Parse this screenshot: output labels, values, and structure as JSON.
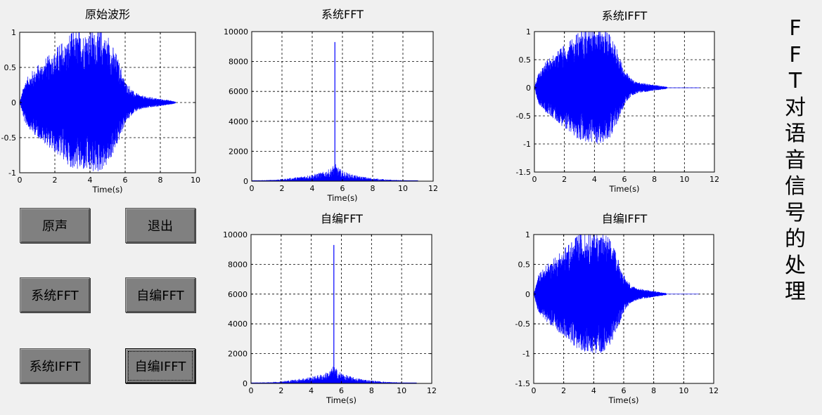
{
  "side_title": [
    "F",
    "F",
    "T",
    "对",
    "语",
    "音",
    "信",
    "号",
    "的",
    "处",
    "理"
  ],
  "buttons": {
    "original": "原声",
    "exit": "退出",
    "sys_fft": "系统FFT",
    "self_fft": "自编FFT",
    "sys_ifft": "系统IFFT",
    "self_ifft": "自编IFFT"
  },
  "colors": {
    "signal": "#0000ff",
    "plot_bg": "#ffffff",
    "figure_bg": "#f0f0f0",
    "button": "#808080"
  },
  "chart_data": [
    {
      "id": "original",
      "type": "line",
      "title": "原始波形",
      "xlabel": "Time(s)",
      "xlim": [
        0,
        10
      ],
      "ylim": [
        -1,
        1
      ],
      "xticks": [
        0,
        2,
        4,
        6,
        8,
        10
      ],
      "xtick_labels": [
        "0",
        "2",
        "4",
        "6",
        "8",
        "10"
      ],
      "yticks": [
        -1,
        -0.5,
        0,
        0.5,
        1
      ],
      "ytick_labels": [
        "-1",
        "-0.5",
        "0",
        "0.5",
        "1"
      ],
      "grid": true,
      "envelope": [
        [
          0,
          0
        ],
        [
          0.3,
          0.3
        ],
        [
          0.8,
          0.45
        ],
        [
          1.5,
          0.6
        ],
        [
          2,
          0.72
        ],
        [
          2.5,
          0.82
        ],
        [
          3,
          0.95
        ],
        [
          3.5,
          0.97
        ],
        [
          4,
          1
        ],
        [
          4.5,
          1
        ],
        [
          5,
          0.9
        ],
        [
          5.5,
          0.65
        ],
        [
          6,
          0.3
        ],
        [
          6.5,
          0.14
        ],
        [
          7,
          0.09
        ],
        [
          8,
          0.05
        ],
        [
          8.8,
          0.02
        ],
        [
          8.9,
          0
        ]
      ]
    },
    {
      "id": "sys_fft",
      "type": "line",
      "title": "系统FFT",
      "xlabel": "Time(s)",
      "xlim": [
        0,
        12
      ],
      "ylim": [
        0,
        10000
      ],
      "xticks": [
        0,
        2,
        4,
        6,
        8,
        10,
        12
      ],
      "xtick_labels": [
        "0",
        "2",
        "4",
        "6",
        "8",
        "10",
        "12"
      ],
      "yticks": [
        0,
        2000,
        4000,
        6000,
        8000,
        10000
      ],
      "ytick_labels": [
        "0",
        "2000",
        "4000",
        "6000",
        "8000",
        "10000"
      ],
      "grid": true,
      "baseline": [
        [
          0,
          40
        ],
        [
          1,
          60
        ],
        [
          2,
          120
        ],
        [
          3,
          230
        ],
        [
          4,
          380
        ],
        [
          4.7,
          520
        ],
        [
          5.2,
          700
        ],
        [
          5.5,
          1000
        ],
        [
          5.8,
          700
        ],
        [
          6.3,
          480
        ],
        [
          7,
          300
        ],
        [
          8,
          170
        ],
        [
          9,
          90
        ],
        [
          10,
          50
        ],
        [
          11,
          30
        ]
      ],
      "peak_x": 5.5,
      "peak_y": 9300
    },
    {
      "id": "sys_ifft",
      "type": "line",
      "title": "系统IFFT",
      "xlabel": "Time(s)",
      "xlim": [
        0,
        12
      ],
      "ylim": [
        -1.5,
        1
      ],
      "xticks": [
        0,
        2,
        4,
        6,
        8,
        10,
        12
      ],
      "xtick_labels": [
        "0",
        "2",
        "4",
        "6",
        "8",
        "10",
        "12"
      ],
      "yticks": [
        -1.5,
        -1,
        -0.5,
        0,
        0.5,
        1
      ],
      "ytick_labels": [
        "-1.5",
        "-1",
        "-0.5",
        "0",
        "0.5",
        "1"
      ],
      "grid": true,
      "envelope": [
        [
          0,
          0
        ],
        [
          0.3,
          0.3
        ],
        [
          0.8,
          0.45
        ],
        [
          1.5,
          0.6
        ],
        [
          2,
          0.72
        ],
        [
          2.5,
          0.82
        ],
        [
          3,
          0.95
        ],
        [
          3.5,
          0.97
        ],
        [
          4,
          1
        ],
        [
          4.5,
          1
        ],
        [
          5,
          0.9
        ],
        [
          5.5,
          0.65
        ],
        [
          6,
          0.3
        ],
        [
          6.5,
          0.14
        ],
        [
          7,
          0.09
        ],
        [
          8,
          0.05
        ],
        [
          8.8,
          0.02
        ],
        [
          8.9,
          0
        ]
      ],
      "flat_until": 11
    },
    {
      "id": "self_fft",
      "type": "line",
      "title": "自编FFT",
      "xlabel": "Time(s)",
      "xlim": [
        0,
        12
      ],
      "ylim": [
        0,
        10000
      ],
      "xticks": [
        0,
        2,
        4,
        6,
        8,
        10,
        12
      ],
      "xtick_labels": [
        "0",
        "2",
        "4",
        "6",
        "8",
        "10",
        "12"
      ],
      "yticks": [
        0,
        2000,
        4000,
        6000,
        8000,
        10000
      ],
      "ytick_labels": [
        "0",
        "2000",
        "4000",
        "6000",
        "8000",
        "10000"
      ],
      "grid": true,
      "baseline": [
        [
          0,
          40
        ],
        [
          1,
          60
        ],
        [
          2,
          120
        ],
        [
          3,
          230
        ],
        [
          4,
          380
        ],
        [
          4.7,
          520
        ],
        [
          5.2,
          700
        ],
        [
          5.5,
          1000
        ],
        [
          5.8,
          700
        ],
        [
          6.3,
          480
        ],
        [
          7,
          300
        ],
        [
          8,
          170
        ],
        [
          9,
          90
        ],
        [
          10,
          50
        ],
        [
          11,
          30
        ]
      ],
      "peak_x": 5.5,
      "peak_y": 9300
    },
    {
      "id": "self_ifft",
      "type": "line",
      "title": "自编IFFT",
      "xlabel": "Time(s)",
      "xlim": [
        0,
        12
      ],
      "ylim": [
        -1.5,
        1
      ],
      "xticks": [
        0,
        2,
        4,
        6,
        8,
        10,
        12
      ],
      "xtick_labels": [
        "0",
        "2",
        "4",
        "6",
        "8",
        "10",
        "12"
      ],
      "yticks": [
        -1.5,
        -1,
        -0.5,
        0,
        0.5,
        1
      ],
      "ytick_labels": [
        "-1.5",
        "-1",
        "-0.5",
        "0",
        "0.5",
        "1"
      ],
      "grid": true,
      "envelope": [
        [
          0,
          0
        ],
        [
          0.3,
          0.3
        ],
        [
          0.8,
          0.45
        ],
        [
          1.5,
          0.6
        ],
        [
          2,
          0.72
        ],
        [
          2.5,
          0.82
        ],
        [
          3,
          0.95
        ],
        [
          3.5,
          0.97
        ],
        [
          4,
          1
        ],
        [
          4.5,
          1
        ],
        [
          5,
          0.9
        ],
        [
          5.5,
          0.65
        ],
        [
          6,
          0.3
        ],
        [
          6.5,
          0.14
        ],
        [
          7,
          0.09
        ],
        [
          8,
          0.05
        ],
        [
          8.8,
          0.02
        ],
        [
          8.9,
          0
        ]
      ],
      "flat_until": 11
    }
  ]
}
